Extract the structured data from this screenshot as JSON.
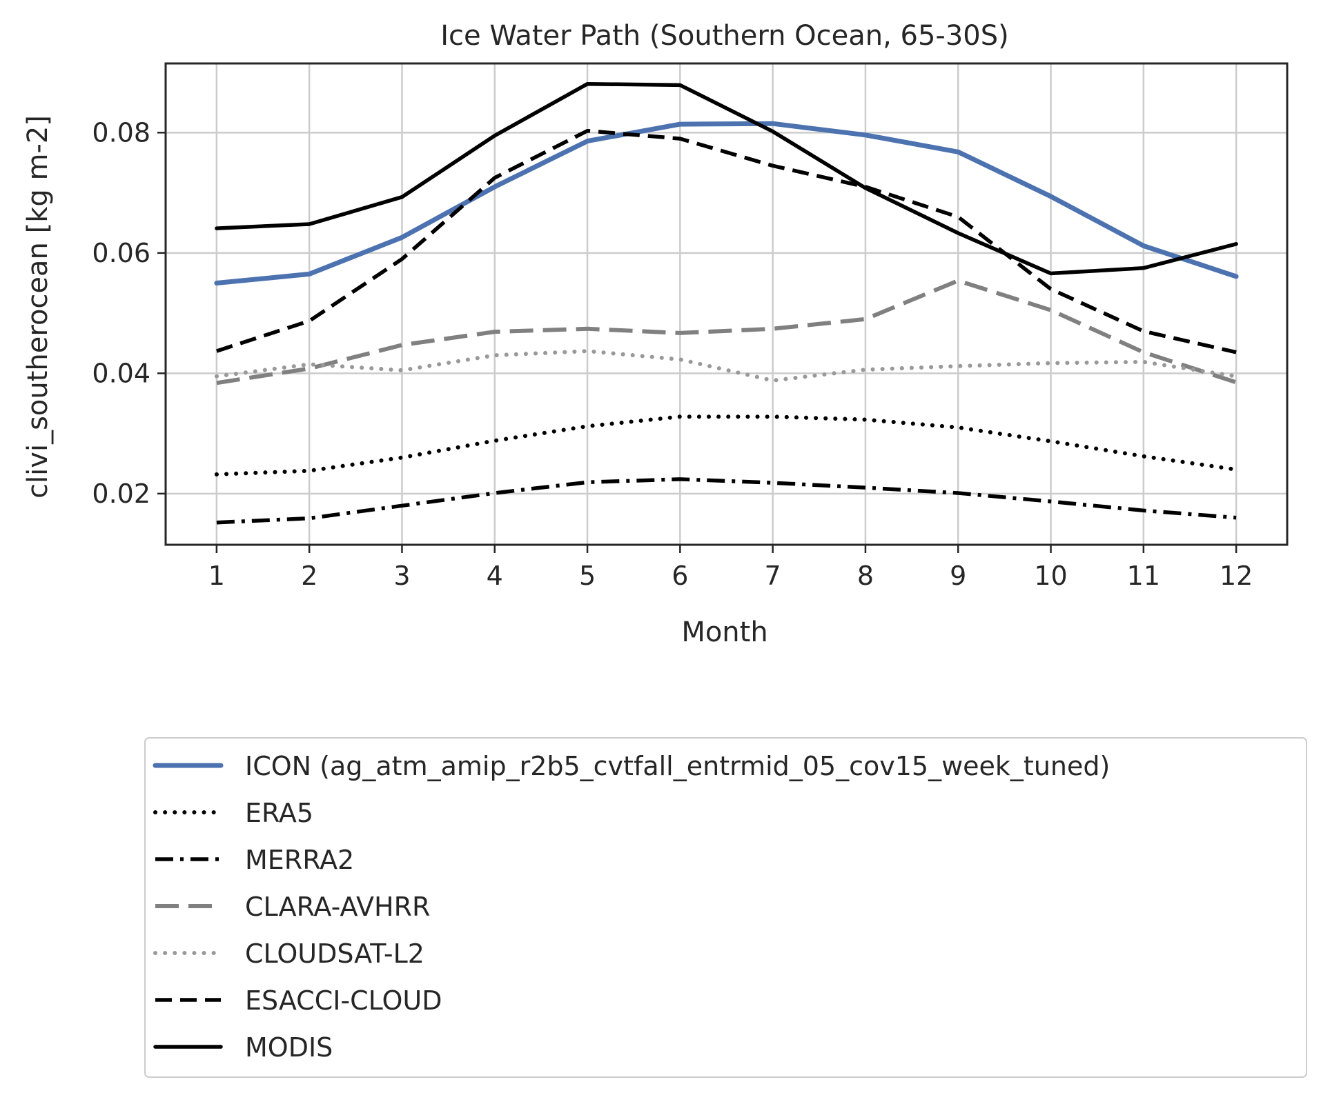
{
  "chart_data": {
    "type": "line",
    "title": "Ice Water Path (Southern Ocean, 65-30S)",
    "xlabel": "Month",
    "ylabel": "clivi_southerocean [kg m-2]",
    "x": [
      1,
      2,
      3,
      4,
      5,
      6,
      7,
      8,
      9,
      10,
      11,
      12
    ],
    "x_ticks": [
      "1",
      "2",
      "3",
      "4",
      "5",
      "6",
      "7",
      "8",
      "9",
      "10",
      "11",
      "12"
    ],
    "y_ticks": [
      "0.02",
      "0.04",
      "0.06",
      "0.08"
    ],
    "xlim": [
      0.45,
      12.55
    ],
    "ylim": [
      0.0115,
      0.0915
    ],
    "grid": true,
    "legend_position": "below",
    "series": [
      {
        "name": "ICON (ag_atm_amip_r2b5_cvtfall_entrmid_05_cov15_week_tuned)",
        "color": "#4c72b0",
        "style": "solid-thick",
        "values": [
          0.055,
          0.0565,
          0.0626,
          0.071,
          0.0786,
          0.0814,
          0.0815,
          0.0796,
          0.0768,
          0.0694,
          0.0612,
          0.0561
        ]
      },
      {
        "name": "ERA5",
        "color": "#000000",
        "style": "dotted",
        "values": [
          0.0232,
          0.0238,
          0.026,
          0.0288,
          0.0312,
          0.0328,
          0.0328,
          0.0323,
          0.031,
          0.0287,
          0.0262,
          0.024
        ]
      },
      {
        "name": "MERRA2",
        "color": "#000000",
        "style": "dashdot",
        "values": [
          0.0152,
          0.0159,
          0.018,
          0.0201,
          0.0219,
          0.0224,
          0.0218,
          0.021,
          0.0201,
          0.0187,
          0.0172,
          0.016
        ]
      },
      {
        "name": "CLARA-AVHRR",
        "color": "#808080",
        "style": "dashed-long",
        "values": [
          0.0384,
          0.0408,
          0.0447,
          0.0469,
          0.0474,
          0.0467,
          0.0474,
          0.049,
          0.0554,
          0.0505,
          0.0435,
          0.0385
        ]
      },
      {
        "name": "CLOUDSAT-L2",
        "color": "#999999",
        "style": "dotted",
        "values": [
          0.0395,
          0.0415,
          0.0405,
          0.043,
          0.0437,
          0.0423,
          0.0388,
          0.0406,
          0.0412,
          0.0417,
          0.0419,
          0.0395
        ]
      },
      {
        "name": "ESACCI-CLOUD",
        "color": "#000000",
        "style": "dashed",
        "values": [
          0.0437,
          0.0487,
          0.059,
          0.0725,
          0.0803,
          0.079,
          0.0745,
          0.071,
          0.066,
          0.054,
          0.047,
          0.0435
        ]
      },
      {
        "name": "MODIS",
        "color": "#000000",
        "style": "solid",
        "values": [
          0.0641,
          0.0648,
          0.0693,
          0.0795,
          0.0881,
          0.0879,
          0.0802,
          0.0708,
          0.0633,
          0.0566,
          0.0575,
          0.0615
        ]
      }
    ]
  }
}
